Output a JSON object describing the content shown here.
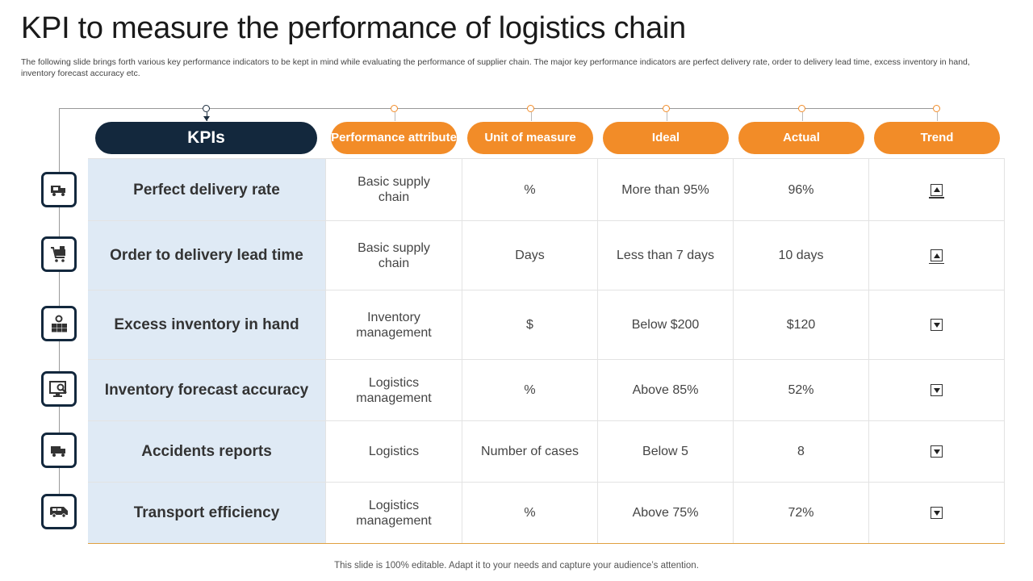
{
  "title": "KPI to measure the performance of logistics chain",
  "subtitle": "The following slide brings forth various key performance indicators to be kept in mind while evaluating the performance of supplier chain. The major key performance indicators are perfect delivery rate, order to delivery lead time, excess inventory in hand, inventory forecast accuracy etc.",
  "headers": {
    "kpi": "KPIs",
    "performance_attribute": "Performance attribute",
    "unit_of_measure": "Unit of measure",
    "ideal": "Ideal",
    "actual": "Actual",
    "trend": "Trend"
  },
  "rows": [
    {
      "kpi": "Perfect delivery rate",
      "attribute": "Basic supply chain",
      "unit": "%",
      "ideal": "More than 95%",
      "actual": "96%",
      "trend": "up",
      "icon": "delivery-truck-icon"
    },
    {
      "kpi": "Order to delivery lead time",
      "attribute": "Basic supply chain",
      "unit": "Days",
      "ideal": "Less than 7 days",
      "actual": "10 days",
      "trend": "up",
      "icon": "shopping-cart-icon"
    },
    {
      "kpi": "Excess inventory in hand",
      "attribute": "Inventory management",
      "unit": "$",
      "ideal": "Below $200",
      "actual": "$120",
      "trend": "down",
      "icon": "inventory-boxes-gear-icon"
    },
    {
      "kpi": "Inventory forecast accuracy",
      "attribute": "Logistics management",
      "unit": "%",
      "ideal": "Above 85%",
      "actual": "52%",
      "trend": "down",
      "icon": "monitor-search-icon"
    },
    {
      "kpi": "Accidents reports",
      "attribute": "Logistics",
      "unit": "Number of cases",
      "ideal": "Below 5",
      "actual": "8",
      "trend": "down",
      "icon": "truck-icon"
    },
    {
      "kpi": "Transport efficiency",
      "attribute": "Logistics management",
      "unit": "%",
      "ideal": "Above 75%",
      "actual": "72%",
      "trend": "down",
      "icon": "van-icon"
    }
  ],
  "footer": "This slide is 100% editable. Adapt it to your needs and capture your audience’s attention.",
  "colors": {
    "navy": "#13283d",
    "orange": "#f28c28",
    "kpi_column_bg": "#dfeaf5"
  }
}
